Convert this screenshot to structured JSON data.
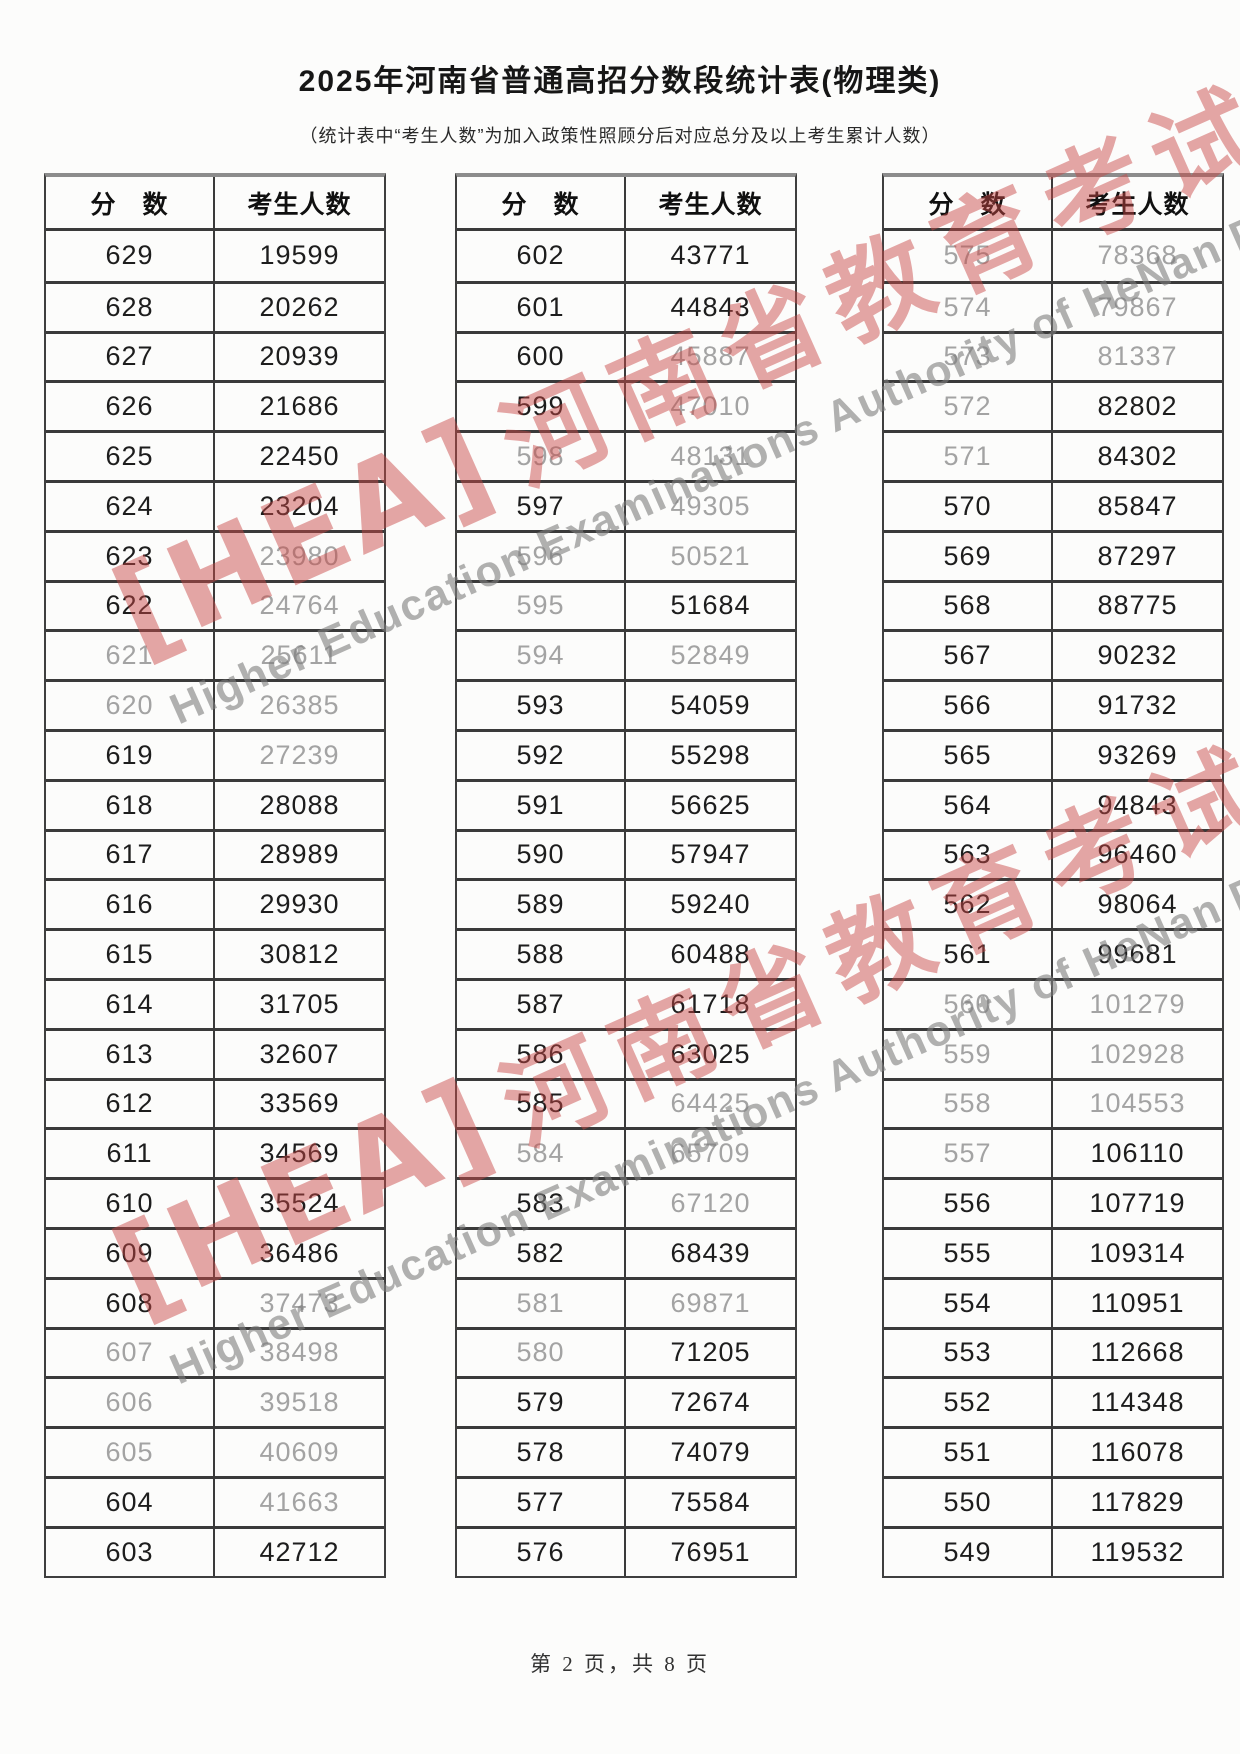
{
  "title": "2025年河南省普通高招分数段统计表(物理类)",
  "subtitle": "（统计表中“考生人数”为加入政策性照顾分后对应总分及以上考生累计人数）",
  "footer": "第 2 页，共 8 页",
  "columns": {
    "score": "分　数",
    "count": "考生人数"
  },
  "watermark": {
    "logo": "[HEA]",
    "cn": "河南省教育考试院",
    "en": "Higher Education Examinations Authority of HeNan Province",
    "cn_color": "#c94846",
    "en_color": "#7d7d7d"
  },
  "tables": [
    {
      "rows": [
        [
          "629",
          "19599",
          ""
        ],
        [
          "628",
          "20262",
          ""
        ],
        [
          "627",
          "20939",
          ""
        ],
        [
          "626",
          "21686",
          ""
        ],
        [
          "625",
          "22450",
          ""
        ],
        [
          "624",
          "23204",
          ""
        ],
        [
          "623",
          "23980",
          "v"
        ],
        [
          "622",
          "24764",
          "v"
        ],
        [
          "621",
          "25611",
          "sv"
        ],
        [
          "620",
          "26385",
          "sv"
        ],
        [
          "619",
          "27239",
          "v"
        ],
        [
          "618",
          "28088",
          ""
        ],
        [
          "617",
          "28989",
          ""
        ],
        [
          "616",
          "29930",
          ""
        ],
        [
          "615",
          "30812",
          ""
        ],
        [
          "614",
          "31705",
          ""
        ],
        [
          "613",
          "32607",
          ""
        ],
        [
          "612",
          "33569",
          ""
        ],
        [
          "611",
          "34569",
          ""
        ],
        [
          "610",
          "35524",
          ""
        ],
        [
          "609",
          "36486",
          ""
        ],
        [
          "608",
          "37473",
          "v"
        ],
        [
          "607",
          "38498",
          "sv"
        ],
        [
          "606",
          "39518",
          "sv"
        ],
        [
          "605",
          "40609",
          "sv"
        ],
        [
          "604",
          "41663",
          "v"
        ],
        [
          "603",
          "42712",
          ""
        ]
      ]
    },
    {
      "rows": [
        [
          "602",
          "43771",
          ""
        ],
        [
          "601",
          "44843",
          ""
        ],
        [
          "600",
          "45887",
          "v"
        ],
        [
          "599",
          "47010",
          "v"
        ],
        [
          "598",
          "48131",
          "sv"
        ],
        [
          "597",
          "49305",
          "v"
        ],
        [
          "596",
          "50521",
          "sv"
        ],
        [
          "595",
          "51684",
          "s"
        ],
        [
          "594",
          "52849",
          "sv"
        ],
        [
          "593",
          "54059",
          ""
        ],
        [
          "592",
          "55298",
          ""
        ],
        [
          "591",
          "56625",
          ""
        ],
        [
          "590",
          "57947",
          ""
        ],
        [
          "589",
          "59240",
          ""
        ],
        [
          "588",
          "60488",
          ""
        ],
        [
          "587",
          "61718",
          ""
        ],
        [
          "586",
          "63025",
          ""
        ],
        [
          "585",
          "64425",
          "v"
        ],
        [
          "584",
          "65709",
          "sv"
        ],
        [
          "583",
          "67120",
          "v"
        ],
        [
          "582",
          "68439",
          ""
        ],
        [
          "581",
          "69871",
          "sv"
        ],
        [
          "580",
          "71205",
          "s"
        ],
        [
          "579",
          "72674",
          ""
        ],
        [
          "578",
          "74079",
          ""
        ],
        [
          "577",
          "75584",
          ""
        ],
        [
          "576",
          "76951",
          ""
        ]
      ]
    },
    {
      "rows": [
        [
          "575",
          "78368",
          "sv"
        ],
        [
          "574",
          "79867",
          "sv"
        ],
        [
          "573",
          "81337",
          "sv"
        ],
        [
          "572",
          "82802",
          "s"
        ],
        [
          "571",
          "84302",
          "s"
        ],
        [
          "570",
          "85847",
          ""
        ],
        [
          "569",
          "87297",
          ""
        ],
        [
          "568",
          "88775",
          ""
        ],
        [
          "567",
          "90232",
          ""
        ],
        [
          "566",
          "91732",
          ""
        ],
        [
          "565",
          "93269",
          ""
        ],
        [
          "564",
          "94843",
          ""
        ],
        [
          "563",
          "96460",
          ""
        ],
        [
          "562",
          "98064",
          ""
        ],
        [
          "561",
          "99681",
          ""
        ],
        [
          "560",
          "101279",
          "sv"
        ],
        [
          "559",
          "102928",
          "sv"
        ],
        [
          "558",
          "104553",
          "sv"
        ],
        [
          "557",
          "106110",
          "s"
        ],
        [
          "556",
          "107719",
          ""
        ],
        [
          "555",
          "109314",
          ""
        ],
        [
          "554",
          "110951",
          ""
        ],
        [
          "553",
          "112668",
          ""
        ],
        [
          "552",
          "114348",
          ""
        ],
        [
          "551",
          "116078",
          ""
        ],
        [
          "550",
          "117829",
          ""
        ],
        [
          "549",
          "119532",
          ""
        ]
      ]
    }
  ]
}
